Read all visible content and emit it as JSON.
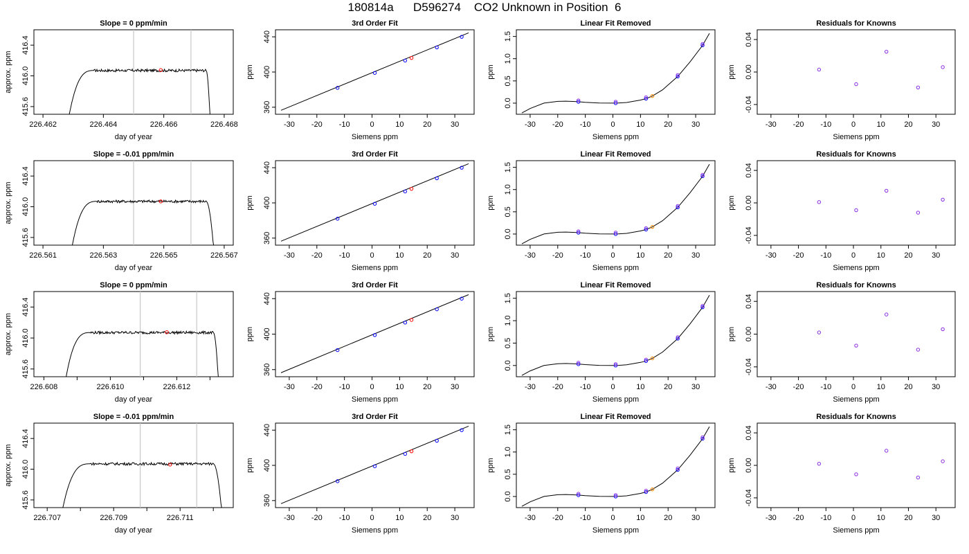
{
  "page": {
    "title": "180814a      D596274    CO2 Unknown in Position  6"
  },
  "panel_titles": {
    "time_series": [
      "Slope =  0  ppm/min",
      "Slope =  -0.01  ppm/min",
      "Slope =  0  ppm/min",
      "Slope =  -0.01  ppm/min"
    ],
    "fit": "3rd Order Fit",
    "linear_removed": "Linear Fit Removed",
    "residuals": "Residuals for Knowns"
  },
  "axis_labels": {
    "time_x": "day of year",
    "time_y": "approx. ppm",
    "siemens_x": "Siemens ppm",
    "ppm_y": "ppm"
  },
  "colors": {
    "line": "#000000",
    "known_points": "#0000ff",
    "unknown_point_fit": "#ff0000",
    "unknown_point_removed": "#ff8c00",
    "residual_points": "#8a2be2",
    "window_marker": "#c8c8c8"
  },
  "chart_data": [
    {
      "panel": "row1-time-series",
      "type": "line",
      "title": "Slope =  0  ppm/min",
      "xlabel": "day of year",
      "ylabel": "approx. ppm",
      "xlim": [
        226.4617,
        226.4683
      ],
      "ylim": [
        415.5,
        416.6
      ],
      "x_ticks": [
        226.462,
        226.464,
        226.466,
        226.468
      ],
      "x_tick_labels": [
        "226.462",
        "226.464",
        "226.466",
        "226.468"
      ],
      "y_ticks": [
        415.6,
        416.0,
        416.4
      ],
      "y_tick_labels": [
        "415.6",
        "416.0",
        "416.4"
      ],
      "trace": {
        "start": 226.46285,
        "plateau_start": 226.4637,
        "plateau_end": 226.4674,
        "end": 226.46753,
        "level": 416.07
      },
      "window_markers": [
        226.465,
        226.4669
      ],
      "unknown_point": {
        "x": 226.4659,
        "y": 416.075
      }
    },
    {
      "panel": "row2-time-series",
      "type": "line",
      "title": "Slope =  -0.01  ppm/min",
      "xlabel": "day of year",
      "ylabel": "approx. ppm",
      "xlim": [
        226.5607,
        226.5673
      ],
      "ylim": [
        415.5,
        416.6
      ],
      "x_ticks": [
        226.561,
        226.563,
        226.565,
        226.567
      ],
      "x_tick_labels": [
        "226.561",
        "226.563",
        "226.565",
        "226.567"
      ],
      "y_ticks": [
        415.6,
        416.0,
        416.4
      ],
      "y_tick_labels": [
        "415.6",
        "416.0",
        "416.4"
      ],
      "trace": {
        "start": 226.56195,
        "plateau_start": 226.5628,
        "plateau_end": 226.5664,
        "end": 226.56665,
        "level": 416.07
      },
      "window_markers": [
        226.564,
        226.5659
      ],
      "unknown_point": {
        "x": 226.5649,
        "y": 416.07
      }
    },
    {
      "panel": "row3-time-series",
      "type": "line",
      "title": "Slope =  0  ppm/min",
      "xlabel": "day of year",
      "ylabel": "approx. ppm",
      "xlim": [
        226.6077,
        226.6137
      ],
      "ylim": [
        415.5,
        416.6
      ],
      "x_ticks": [
        226.608,
        226.609,
        226.61,
        226.611,
        226.612,
        226.613
      ],
      "x_tick_labels": [
        "226.608",
        "",
        "226.610",
        "",
        "226.612",
        ""
      ],
      "y_ticks": [
        415.6,
        416.0,
        416.4
      ],
      "y_tick_labels": [
        "415.6",
        "416.0",
        "416.4"
      ],
      "trace": {
        "start": 226.60865,
        "plateau_start": 226.6094,
        "plateau_end": 226.6131,
        "end": 226.61325,
        "level": 416.07
      },
      "window_markers": [
        226.6109,
        226.6126
      ],
      "unknown_point": {
        "x": 226.6117,
        "y": 416.075
      }
    },
    {
      "panel": "row4-time-series",
      "type": "line",
      "title": "Slope =  -0.01  ppm/min",
      "xlabel": "day of year",
      "ylabel": "approx. ppm",
      "xlim": [
        226.7066,
        226.7126
      ],
      "ylim": [
        415.5,
        416.6
      ],
      "x_ticks": [
        226.707,
        226.708,
        226.709,
        226.71,
        226.711,
        226.712
      ],
      "x_tick_labels": [
        "226.707",
        "",
        "226.709",
        "",
        "226.711",
        ""
      ],
      "y_ticks": [
        415.6,
        416.0,
        416.4
      ],
      "y_tick_labels": [
        "415.6",
        "416.0",
        "416.4"
      ],
      "trace": {
        "start": 226.70745,
        "plateau_start": 226.7083,
        "plateau_end": 226.712,
        "end": 226.71225,
        "level": 416.07
      },
      "window_markers": [
        226.7098,
        226.7115
      ],
      "unknown_point": {
        "x": 226.7107,
        "y": 416.06
      }
    },
    {
      "panel": "fit-rows-1-to-4",
      "type": "scatter",
      "title": "3rd Order Fit",
      "xlabel": "Siemens ppm",
      "ylabel": "ppm",
      "xlim": [
        -35,
        37
      ],
      "ylim": [
        352,
        448
      ],
      "x_ticks": [
        -30,
        -20,
        -10,
        0,
        10,
        20,
        30
      ],
      "y_ticks": [
        360,
        400,
        440
      ],
      "line": {
        "x": [
          -33,
          35
        ],
        "y": [
          356.5,
          444.5
        ]
      },
      "known_points": [
        {
          "x": -12.5,
          "y": 382
        },
        {
          "x": 1,
          "y": 399
        },
        {
          "x": 12,
          "y": 413
        },
        {
          "x": 23.5,
          "y": 428
        },
        {
          "x": 32.5,
          "y": 440
        }
      ],
      "unknown_point": {
        "x": 14.3,
        "y": 416
      }
    },
    {
      "panel": "linear-fit-removed-rows-1-to-4",
      "type": "scatter",
      "title": "Linear Fit Removed",
      "xlabel": "Siemens ppm",
      "ylabel": "ppm",
      "xlim": [
        -35,
        37
      ],
      "ylim": [
        -0.25,
        1.65
      ],
      "x_ticks": [
        -30,
        -20,
        -10,
        0,
        10,
        20,
        30
      ],
      "y_ticks": [
        0.0,
        0.5,
        1.0,
        1.5
      ],
      "y_tick_labels": [
        "0.0",
        "0.5",
        "1.0",
        "1.5"
      ],
      "curve": {
        "x": [
          -33,
          -30,
          -25,
          -20,
          -17,
          -13,
          -10,
          -5,
          0,
          2,
          5,
          10,
          12,
          14.3,
          18,
          23.5,
          28,
          32.5,
          35
        ],
        "y": [
          -0.22,
          -0.12,
          0.0,
          0.04,
          0.045,
          0.035,
          0.02,
          0.003,
          0.0,
          0.003,
          0.015,
          0.07,
          0.1,
          0.16,
          0.3,
          0.6,
          0.93,
          1.3,
          1.57
        ]
      },
      "known_points": [
        {
          "x": -12.5,
          "y": 0.03
        },
        {
          "x": 1,
          "y": 0.0
        },
        {
          "x": 12,
          "y": 0.1
        },
        {
          "x": 23.5,
          "y": 0.6
        },
        {
          "x": 32.5,
          "y": 1.3
        }
      ],
      "unknown_point": {
        "x": 14.3,
        "y": 0.16
      }
    },
    {
      "panel": "row1-residuals",
      "type": "scatter",
      "title": "Residuals for Knowns",
      "xlabel": "Siemens ppm",
      "ylabel": "ppm",
      "xlim": [
        -35,
        37
      ],
      "ylim": [
        -0.052,
        0.052
      ],
      "x_ticks": [
        -30,
        -20,
        -10,
        0,
        10,
        20,
        30
      ],
      "y_ticks": [
        -0.04,
        0.0,
        0.04
      ],
      "y_tick_labels": [
        "-0.04",
        "0.00",
        "0.04"
      ],
      "x": [
        -12.5,
        1,
        12,
        23.5,
        32.5
      ],
      "y": [
        0.003,
        -0.015,
        0.025,
        -0.019,
        0.006
      ]
    },
    {
      "panel": "row2-residuals",
      "type": "scatter",
      "title": "Residuals for Knowns",
      "xlabel": "Siemens ppm",
      "ylabel": "ppm",
      "xlim": [
        -35,
        37
      ],
      "ylim": [
        -0.052,
        0.052
      ],
      "x_ticks": [
        -30,
        -20,
        -10,
        0,
        10,
        20,
        30
      ],
      "y_ticks": [
        -0.04,
        0.0,
        0.04
      ],
      "y_tick_labels": [
        "-0.04",
        "0.00",
        "0.04"
      ],
      "x": [
        -12.5,
        1,
        12,
        23.5,
        32.5
      ],
      "y": [
        0.001,
        -0.009,
        0.015,
        -0.012,
        0.004
      ]
    },
    {
      "panel": "row3-residuals",
      "type": "scatter",
      "title": "Residuals for Knowns",
      "xlabel": "Siemens ppm",
      "ylabel": "ppm",
      "xlim": [
        -35,
        37
      ],
      "ylim": [
        -0.052,
        0.052
      ],
      "x_ticks": [
        -30,
        -20,
        -10,
        0,
        10,
        20,
        30
      ],
      "y_ticks": [
        -0.04,
        0.0,
        0.04
      ],
      "y_tick_labels": [
        "-0.04",
        "0.00",
        "0.04"
      ],
      "x": [
        -12.5,
        1,
        12,
        23.5,
        32.5
      ],
      "y": [
        0.002,
        -0.014,
        0.024,
        -0.019,
        0.006
      ]
    },
    {
      "panel": "row4-residuals",
      "type": "scatter",
      "title": "Residuals for Knowns",
      "xlabel": "Siemens ppm",
      "ylabel": "ppm",
      "xlim": [
        -35,
        37
      ],
      "ylim": [
        -0.052,
        0.052
      ],
      "x_ticks": [
        -30,
        -20,
        -10,
        0,
        10,
        20,
        30
      ],
      "y_ticks": [
        -0.04,
        0.0,
        0.04
      ],
      "y_tick_labels": [
        "-0.04",
        "0.00",
        "0.04"
      ],
      "x": [
        -12.5,
        1,
        12,
        23.5,
        32.5
      ],
      "y": [
        0.002,
        -0.011,
        0.018,
        -0.015,
        0.005
      ]
    }
  ]
}
